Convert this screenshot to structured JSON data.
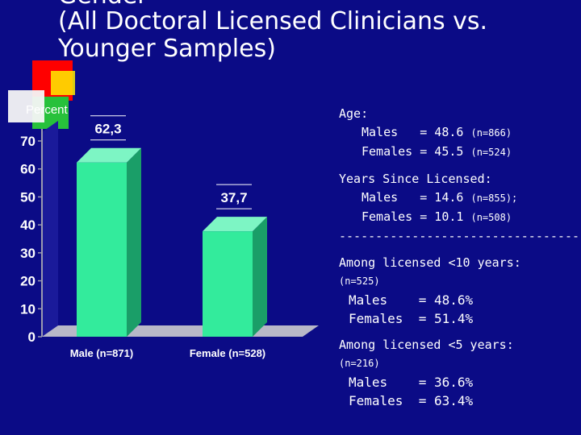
{
  "title": {
    "cut_line": "Gender",
    "text": "(All Doctoral Licensed Clinicians vs. Younger Samples)"
  },
  "colors": {
    "background": "#0b0b86",
    "bar": "#33eb9c",
    "bar_side": "#1a9e68",
    "bar_top": "#7df5c4",
    "floor": "#b8b8c8",
    "wall": "#0b0b86"
  },
  "chart_data": {
    "type": "bar",
    "title": "",
    "ylabel": "Percent",
    "xlabel": "",
    "categories": [
      "Male (n=871)",
      "Female (n=528)"
    ],
    "values": [
      62.3,
      37.7
    ],
    "value_labels": [
      "62,3",
      "37,7"
    ],
    "ylim": [
      0,
      70
    ],
    "yticks": [
      0,
      10,
      20,
      30,
      40,
      50,
      60,
      70
    ],
    "grid": false
  },
  "stats": {
    "age_heading": "Age:",
    "age_males_label": "Males",
    "age_males_value": "= 48.6",
    "age_males_n": "(n=866)",
    "age_females_label": "Females",
    "age_females_value": "= 45.5",
    "age_females_n": "(n=524)",
    "years_heading": "Years Since Licensed:",
    "years_males_label": "Males",
    "years_males_value": "= 14.6",
    "years_males_n": "(n=855);",
    "years_females_label": "Females",
    "years_females_value": "= 10.1",
    "years_females_n": "(n=508)",
    "divider": "-----------------------------------",
    "lt10_heading": "Among licensed <10 years:",
    "lt10_n": "(n=525)",
    "lt10_males": "Males    = 48.6%",
    "lt10_females": "Females  = 51.4%",
    "lt5_heading": "Among licensed <5 years:",
    "lt5_n": "(n=216)",
    "lt5_males": "Males    = 36.6%",
    "lt5_females": "Females  = 63.4%"
  }
}
